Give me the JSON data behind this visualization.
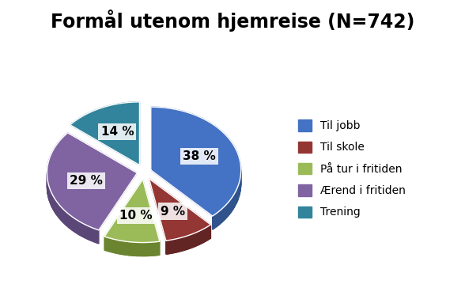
{
  "title": "Formål utenom hjemreise (N=742)",
  "slices": [
    38,
    9,
    10,
    29,
    14
  ],
  "labels": [
    "Til jobb",
    "Til skole",
    "På tur i fritiden",
    "Ærend i fritiden",
    "Trening"
  ],
  "colors_top": [
    "#4472C4",
    "#943634",
    "#9BBB59",
    "#8064A2",
    "#31849B"
  ],
  "colors_side": [
    "#2F538A",
    "#632524",
    "#6B8430",
    "#5B4777",
    "#1F5C6E"
  ],
  "pct_labels": [
    "38 %",
    "9 %",
    "10 %",
    "29 %",
    "14 %"
  ],
  "explode": [
    0.08,
    0.12,
    0.12,
    0.08,
    0.12
  ],
  "startangle": 90,
  "title_fontsize": 17,
  "label_fontsize": 11,
  "legend_fontsize": 10,
  "depth": 0.15
}
